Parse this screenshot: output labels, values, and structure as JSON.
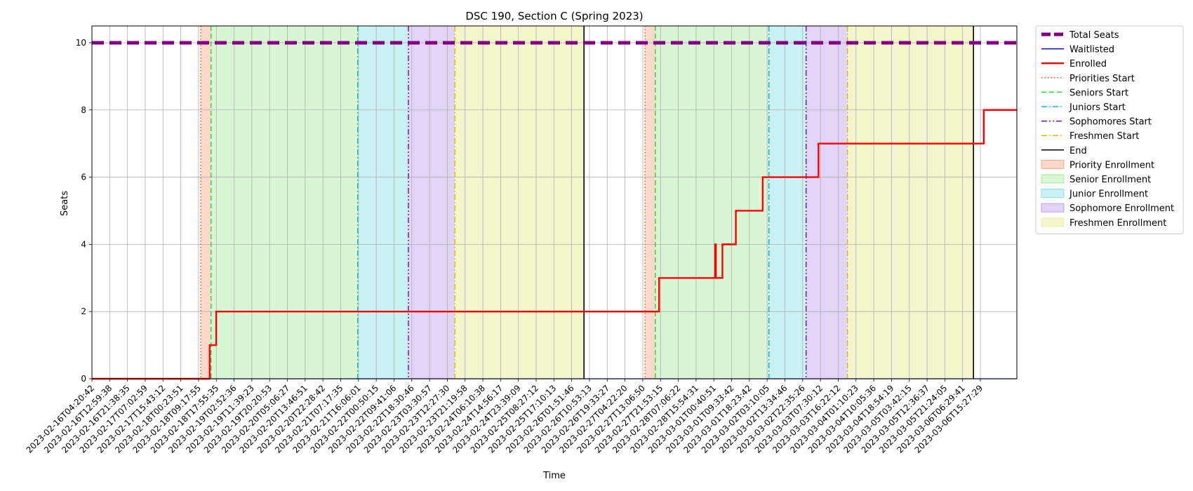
{
  "chart_data": {
    "type": "line",
    "title": "DSC 190, Section C (Spring 2023)",
    "xlabel": "Time",
    "ylabel": "Seats",
    "ylim": [
      0,
      10.5
    ],
    "xlim": [
      "2023-02-16T04:20:42",
      "2023-03-06T20:00:00"
    ],
    "yticks": [
      0,
      2,
      4,
      6,
      8,
      10
    ],
    "grid": true,
    "legend_position": "outside-right",
    "xtick_labels": [
      "2023-02-16T04:20:42",
      "2023-02-16T12:59:38",
      "2023-02-16T21:38:35",
      "2023-02-17T07:02:59",
      "2023-02-17T15:43:12",
      "2023-02-18T00:23:51",
      "2023-02-18T09:17:55",
      "2023-02-18T17:55:35",
      "2023-02-19T02:52:36",
      "2023-02-19T11:39:23",
      "2023-02-19T20:20:53",
      "2023-02-20T05:06:27",
      "2023-02-20T13:46:51",
      "2023-02-20T22:28:42",
      "2023-02-21T07:17:35",
      "2023-02-21T16:06:01",
      "2023-02-22T00:50:15",
      "2023-02-22T09:41:06",
      "2023-02-22T18:30:46",
      "2023-02-23T03:30:57",
      "2023-02-23T12:27:30",
      "2023-02-23T21:19:58",
      "2023-02-24T06:10:38",
      "2023-02-24T14:56:17",
      "2023-02-24T23:39:09",
      "2023-02-25T08:27:12",
      "2023-02-25T17:10:13",
      "2023-02-26T01:51:46",
      "2023-02-26T10:53:13",
      "2023-02-26T19:33:27",
      "2023-02-27T04:22:20",
      "2023-02-27T13:06:50",
      "2023-02-27T21:53:15",
      "2023-02-28T07:06:22",
      "2023-02-28T15:54:31",
      "2023-03-01T00:40:51",
      "2023-03-01T09:33:42",
      "2023-03-01T18:23:42",
      "2023-03-02T03:10:05",
      "2023-03-02T13:34:46",
      "2023-03-02T22:35:26",
      "2023-03-03T07:30:12",
      "2023-03-03T16:22:12",
      "2023-03-04T01:10:23",
      "2023-03-04T10:05:36",
      "2023-03-04T18:54:19",
      "2023-03-05T03:42:15",
      "2023-03-05T12:36:37",
      "2023-03-05T21:24:05",
      "2023-03-06T06:29:41",
      "2023-03-06T15:27:29"
    ],
    "series": [
      {
        "name": "Total Seats",
        "color": "#800080",
        "style": "dashed",
        "points": [
          [
            "2023-02-16T04:20:42",
            10
          ],
          [
            "2023-03-06T20:00:00",
            10
          ]
        ]
      },
      {
        "name": "Waitlisted",
        "color": "#0000ff",
        "style": "solid",
        "points": [
          [
            "2023-02-16T04:20:42",
            0
          ],
          [
            "2023-03-06T20:00:00",
            0
          ]
        ]
      },
      {
        "name": "Enrolled",
        "color": "#ff0000",
        "style": "step",
        "points": [
          [
            "2023-02-16T04:20:42",
            0
          ],
          [
            "2023-02-18T13:20:00",
            0
          ],
          [
            "2023-02-18T13:20:00",
            1
          ],
          [
            "2023-02-18T16:30:00",
            1
          ],
          [
            "2023-02-18T16:30:00",
            2
          ],
          [
            "2023-02-27T14:50:00",
            2
          ],
          [
            "2023-02-27T14:50:00",
            3
          ],
          [
            "2023-02-28T18:00:00",
            3
          ],
          [
            "2023-02-28T18:00:00",
            4
          ],
          [
            "2023-02-28T18:20:00",
            4
          ],
          [
            "2023-02-28T18:20:00",
            3
          ],
          [
            "2023-02-28T21:30:00",
            3
          ],
          [
            "2023-02-28T21:30:00",
            4
          ],
          [
            "2023-03-01T04:00:00",
            4
          ],
          [
            "2023-03-01T04:00:00",
            5
          ],
          [
            "2023-03-01T17:00:00",
            5
          ],
          [
            "2023-03-01T17:00:00",
            6
          ],
          [
            "2023-03-02T20:00:00",
            6
          ],
          [
            "2023-03-02T20:00:00",
            7
          ],
          [
            "2023-03-06T04:00:00",
            7
          ],
          [
            "2023-03-06T04:00:00",
            8
          ],
          [
            "2023-03-06T20:00:00",
            8
          ]
        ]
      }
    ],
    "vlines": [
      {
        "name": "Priorities Start",
        "color": "#ff4500",
        "style": "dotted",
        "x": [
          "2023-02-18T09:00:00",
          "2023-02-27T08:00:00"
        ]
      },
      {
        "name": "Seniors Start",
        "color": "#32cd32",
        "style": "dashed",
        "x": [
          "2023-02-18T14:00:00",
          "2023-02-27T13:00:00"
        ]
      },
      {
        "name": "Juniors Start",
        "color": "#00bfbf",
        "style": "dashdot",
        "x": [
          "2023-02-21T13:00:00",
          "2023-03-01T20:00:00"
        ]
      },
      {
        "name": "Sophomores Start",
        "color": "#6a0dcd",
        "style": "dashdotdot",
        "x": [
          "2023-02-22T13:30:00",
          "2023-03-02T14:00:00"
        ]
      },
      {
        "name": "Freshmen Start",
        "color": "#d4c000",
        "style": "dashdot",
        "x": [
          "2023-02-23T12:00:00",
          "2023-03-03T10:00:00"
        ]
      },
      {
        "name": "End",
        "color": "#000000",
        "style": "solid",
        "x": [
          "2023-02-26T02:30:00",
          "2023-03-05T23:00:00"
        ]
      }
    ],
    "spans": [
      {
        "name": "Priority Enrollment",
        "color": "#f08050",
        "alpha": 0.3,
        "ranges": [
          [
            "2023-02-18T09:00:00",
            "2023-02-18T14:00:00"
          ],
          [
            "2023-02-27T08:00:00",
            "2023-02-27T13:00:00"
          ]
        ]
      },
      {
        "name": "Senior Enrollment",
        "color": "#7fdf6f",
        "alpha": 0.3,
        "ranges": [
          [
            "2023-02-18T14:00:00",
            "2023-02-21T13:00:00"
          ],
          [
            "2023-02-27T13:00:00",
            "2023-03-01T20:00:00"
          ]
        ]
      },
      {
        "name": "Junior Enrollment",
        "color": "#4fd0d8",
        "alpha": 0.3,
        "ranges": [
          [
            "2023-02-21T13:00:00",
            "2023-02-22T13:30:00"
          ],
          [
            "2023-03-01T20:00:00",
            "2023-03-02T14:00:00"
          ]
        ]
      },
      {
        "name": "Sophomore Enrollment",
        "color": "#9c6fe0",
        "alpha": 0.3,
        "ranges": [
          [
            "2023-02-22T13:30:00",
            "2023-02-23T12:00:00"
          ],
          [
            "2023-03-02T14:00:00",
            "2023-03-03T10:00:00"
          ]
        ]
      },
      {
        "name": "Freshmen Enrollment",
        "color": "#e6e680",
        "alpha": 0.4,
        "ranges": [
          [
            "2023-02-23T12:00:00",
            "2023-02-26T02:30:00"
          ],
          [
            "2023-03-03T10:00:00",
            "2023-03-05T23:00:00"
          ]
        ]
      }
    ],
    "legend": [
      {
        "label": "Total Seats",
        "kind": "line",
        "color": "#800080",
        "style": "dashed-thick"
      },
      {
        "label": "Waitlisted",
        "kind": "line",
        "color": "#0000ff",
        "style": "solid"
      },
      {
        "label": "Enrolled",
        "kind": "line",
        "color": "#ff0000",
        "style": "solid-thick"
      },
      {
        "label": "Priorities Start",
        "kind": "line",
        "color": "#ff4500",
        "style": "dotted"
      },
      {
        "label": "Seniors Start",
        "kind": "line",
        "color": "#32cd32",
        "style": "dashed"
      },
      {
        "label": "Juniors Start",
        "kind": "line",
        "color": "#00bfbf",
        "style": "dashdot"
      },
      {
        "label": "Sophomores Start",
        "kind": "line",
        "color": "#6a0dcd",
        "style": "dashdotdot"
      },
      {
        "label": "Freshmen Start",
        "kind": "line",
        "color": "#d4c000",
        "style": "dashdot"
      },
      {
        "label": "End",
        "kind": "line",
        "color": "#000000",
        "style": "solid"
      },
      {
        "label": "Priority Enrollment",
        "kind": "patch",
        "color": "#f08050",
        "alpha": 0.3
      },
      {
        "label": "Senior Enrollment",
        "kind": "patch",
        "color": "#7fdf6f",
        "alpha": 0.3
      },
      {
        "label": "Junior Enrollment",
        "kind": "patch",
        "color": "#4fd0d8",
        "alpha": 0.3
      },
      {
        "label": "Sophomore Enrollment",
        "kind": "patch",
        "color": "#9c6fe0",
        "alpha": 0.3
      },
      {
        "label": "Freshmen Enrollment",
        "kind": "patch",
        "color": "#e6e680",
        "alpha": 0.4
      }
    ]
  }
}
